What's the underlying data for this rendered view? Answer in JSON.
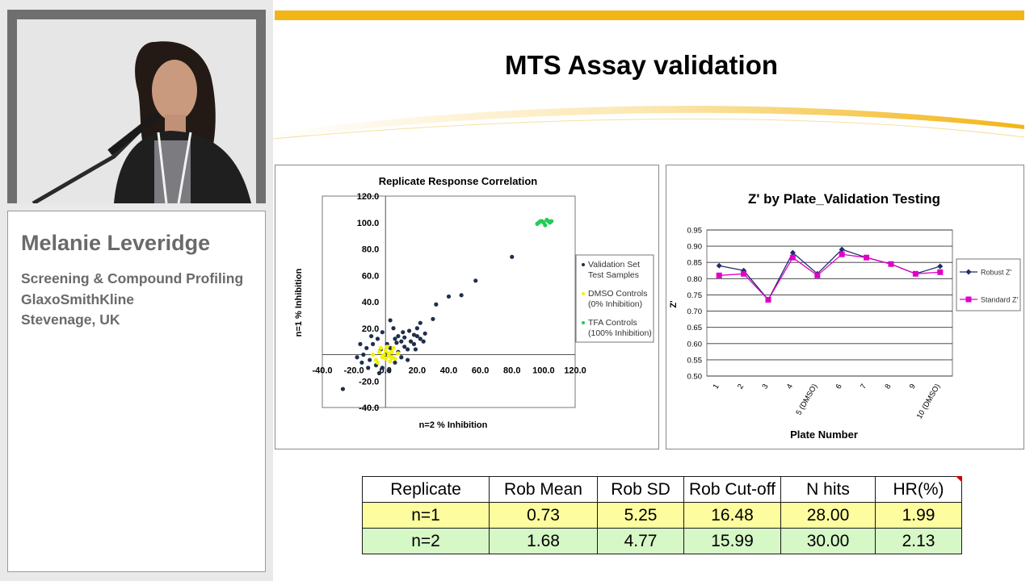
{
  "speaker": {
    "name": "Melanie Leveridge",
    "lines": [
      "Screening & Compound Profiling",
      "GlaxoSmithKline",
      "Stevenage, UK"
    ]
  },
  "slide": {
    "title": "MTS Assay validation",
    "accent_color": "#f2b515"
  },
  "chart_data": [
    {
      "type": "scatter",
      "title": "Replicate Response  Correlation",
      "xlabel": "n=2 % Inhibition",
      "ylabel": "n=1 % Inhibition",
      "xlim": [
        -40,
        120
      ],
      "ylim": [
        -40,
        120
      ],
      "x_ticks": [
        "-40.0",
        "-20.0",
        "0.0",
        "20.0",
        "40.0",
        "60.0",
        "80.0",
        "100.0",
        "120.0"
      ],
      "y_ticks": [
        "120.0",
        "100.0",
        "80.0",
        "60.0",
        "40.0",
        "20.0",
        "-20.0",
        "-40.0"
      ],
      "legend_position": "right",
      "series": [
        {
          "name": "Validation Set Test Samples",
          "legend_lines": [
            "Validation Set",
            "Test Samples"
          ],
          "color": "#1f2f4a",
          "points": [
            [
              -27,
              -26
            ],
            [
              80,
              74
            ],
            [
              57,
              56
            ],
            [
              48,
              45
            ],
            [
              40,
              44
            ],
            [
              32,
              38
            ],
            [
              30,
              27
            ],
            [
              22,
              24
            ],
            [
              20,
              20
            ],
            [
              18,
              15
            ],
            [
              15,
              18
            ],
            [
              12,
              13
            ],
            [
              10,
              10
            ],
            [
              8,
              14
            ],
            [
              6,
              12
            ],
            [
              5,
              20
            ],
            [
              3,
              26
            ],
            [
              -2,
              17
            ],
            [
              -5,
              12
            ],
            [
              -8,
              8
            ],
            [
              -12,
              5
            ],
            [
              -14,
              0
            ],
            [
              -10,
              -4
            ],
            [
              -6,
              -8
            ],
            [
              -2,
              -10
            ],
            [
              2,
              -12
            ],
            [
              6,
              -6
            ],
            [
              10,
              -2
            ],
            [
              14,
              4
            ],
            [
              18,
              8
            ],
            [
              22,
              12
            ],
            [
              25,
              16
            ],
            [
              -15,
              -6
            ],
            [
              -18,
              -2
            ],
            [
              -3,
              4
            ],
            [
              1,
              8
            ],
            [
              4,
              -2
            ],
            [
              8,
              2
            ],
            [
              12,
              6
            ],
            [
              16,
              10
            ],
            [
              -9,
              14
            ],
            [
              0,
              0
            ],
            [
              3,
              5
            ],
            [
              7,
              9
            ],
            [
              11,
              17
            ],
            [
              19,
              4
            ],
            [
              24,
              10
            ],
            [
              -16,
              8
            ],
            [
              -11,
              -10
            ],
            [
              -4,
              -14
            ],
            [
              14,
              -4
            ],
            [
              20,
              14
            ]
          ]
        },
        {
          "name": "DMSO Controls (0% Inhibition)",
          "legend_lines": [
            "DMSO Controls",
            "(0% Inhibition)"
          ],
          "color": "#f2f200",
          "points": [
            [
              -6,
              -4
            ],
            [
              -4,
              2
            ],
            [
              -2,
              -2
            ],
            [
              0,
              3
            ],
            [
              2,
              -1
            ],
            [
              4,
              2
            ],
            [
              6,
              -3
            ],
            [
              -8,
              0
            ],
            [
              1,
              6
            ],
            [
              3,
              -5
            ],
            [
              -3,
              5
            ],
            [
              5,
              5
            ],
            [
              -5,
              -6
            ],
            [
              0,
              -3
            ],
            [
              2,
              1
            ],
            [
              8,
              1
            ],
            [
              -1,
              0
            ],
            [
              4,
              -2
            ]
          ]
        },
        {
          "name": "TFA Controls (100% Inhibition)",
          "legend_lines": [
            "TFA Controls",
            "(100% Inhibition)"
          ],
          "color": "#22cc55",
          "points": [
            [
              96,
              99
            ],
            [
              98,
              101
            ],
            [
              100,
              100
            ],
            [
              102,
              102
            ],
            [
              104,
              100
            ],
            [
              101,
              98
            ],
            [
              99,
              101
            ],
            [
              103,
              101
            ],
            [
              97,
              100
            ],
            [
              105,
              101
            ]
          ]
        }
      ]
    },
    {
      "type": "line",
      "title": "Z' by Plate_Validation Testing",
      "xlabel": "Plate Number",
      "ylabel": "Z'",
      "ylim": [
        0.5,
        0.95
      ],
      "y_ticks": [
        "0.95",
        "0.90",
        "0.85",
        "0.80",
        "0.75",
        "0.70",
        "0.65",
        "0.60",
        "0.55",
        "0.50"
      ],
      "categories": [
        "1",
        "2",
        "3",
        "4",
        "5 (DMSO)",
        "6",
        "7",
        "8",
        "9",
        "10 (DMSO)"
      ],
      "legend_position": "right",
      "series": [
        {
          "name": "Robust Z'",
          "color": "#1f2f6a",
          "values": [
            0.84,
            0.825,
            0.735,
            0.88,
            0.815,
            0.89,
            0.865,
            0.845,
            0.815,
            0.838
          ]
        },
        {
          "name": "Standard Z'",
          "color": "#e000c8",
          "values": [
            0.81,
            0.815,
            0.735,
            0.865,
            0.81,
            0.875,
            0.865,
            0.845,
            0.815,
            0.82
          ]
        }
      ]
    }
  ],
  "table": {
    "headers": [
      "Replicate",
      "Rob Mean",
      "Rob SD",
      "Rob Cut-off",
      "N hits",
      "HR(%)"
    ],
    "rows": [
      [
        "n=1",
        "0.73",
        "5.25",
        "16.48",
        "28.00",
        "1.99"
      ],
      [
        "n=2",
        "1.68",
        "4.77",
        "15.99",
        "30.00",
        "2.13"
      ]
    ]
  }
}
